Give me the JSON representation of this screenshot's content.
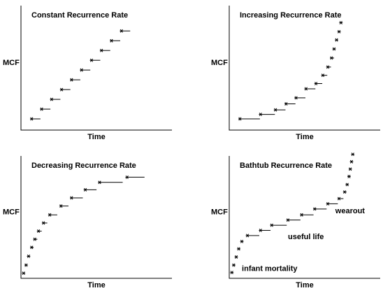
{
  "chart_data": [
    {
      "type": "scatter",
      "title": "Constant Recurrence Rate",
      "xlabel": "Time",
      "ylabel": "MCF",
      "xlim": [
        0,
        240
      ],
      "ylim": [
        0,
        160
      ],
      "grid": false,
      "marker": "asterisk",
      "step_style": "horizontal leftward arrow segments",
      "series": [
        {
          "points": [
            {
              "x": 15,
              "y": 13,
              "x_end": 29
            },
            {
              "x": 31,
              "y": 26,
              "x_end": 45
            },
            {
              "x": 47,
              "y": 39,
              "x_end": 61
            },
            {
              "x": 63,
              "y": 52,
              "x_end": 77
            },
            {
              "x": 79,
              "y": 65,
              "x_end": 93
            },
            {
              "x": 95,
              "y": 78,
              "x_end": 109
            },
            {
              "x": 111,
              "y": 91,
              "x_end": 125
            },
            {
              "x": 127,
              "y": 104,
              "x_end": 141
            },
            {
              "x": 143,
              "y": 117,
              "x_end": 157
            },
            {
              "x": 159,
              "y": 130,
              "x_end": 173
            }
          ]
        }
      ],
      "annotations": []
    },
    {
      "type": "scatter",
      "title": "Increasing Recurrence Rate",
      "xlabel": "Time",
      "ylabel": "MCF",
      "xlim": [
        0,
        240
      ],
      "ylim": [
        0,
        160
      ],
      "grid": false,
      "marker": "asterisk",
      "step_style": "horizontal leftward arrow segments",
      "series": [
        {
          "points": [
            {
              "x": 15,
              "y": 13,
              "x_end": 47
            },
            {
              "x": 48,
              "y": 19,
              "x_end": 71
            },
            {
              "x": 72,
              "y": 25,
              "x_end": 88
            },
            {
              "x": 89,
              "y": 33,
              "x_end": 104
            },
            {
              "x": 105,
              "y": 41,
              "x_end": 120
            },
            {
              "x": 121,
              "y": 53,
              "x_end": 136
            },
            {
              "x": 137,
              "y": 60,
              "x_end": 147
            },
            {
              "x": 148,
              "y": 71,
              "x_end": 155
            },
            {
              "x": 156,
              "y": 82,
              "x_end": 161
            },
            {
              "x": 162,
              "y": 94,
              "x_end": 166
            },
            {
              "x": 166,
              "y": 106
            },
            {
              "x": 170,
              "y": 118
            },
            {
              "x": 174,
              "y": 129
            },
            {
              "x": 177,
              "y": 141
            }
          ]
        }
      ],
      "annotations": []
    },
    {
      "type": "scatter",
      "title": "Decreasing Recurrence Rate",
      "xlabel": "Time",
      "ylabel": "MCF",
      "xlim": [
        0,
        240
      ],
      "ylim": [
        0,
        160
      ],
      "grid": false,
      "marker": "asterisk",
      "step_style": "horizontal leftward arrow segments",
      "series": [
        {
          "points": [
            {
              "x": 2,
              "y": 5
            },
            {
              "x": 6,
              "y": 16
            },
            {
              "x": 10,
              "y": 28
            },
            {
              "x": 15,
              "y": 40,
              "x_end": 18
            },
            {
              "x": 20,
              "y": 51,
              "x_end": 24
            },
            {
              "x": 26,
              "y": 62,
              "x_end": 31
            },
            {
              "x": 34,
              "y": 73,
              "x_end": 40
            },
            {
              "x": 44,
              "y": 84,
              "x_end": 56
            },
            {
              "x": 62,
              "y": 96,
              "x_end": 74
            },
            {
              "x": 79,
              "y": 107,
              "x_end": 97
            },
            {
              "x": 101,
              "y": 118,
              "x_end": 119
            },
            {
              "x": 124,
              "y": 128,
              "x_end": 161
            },
            {
              "x": 168,
              "y": 135,
              "x_end": 196
            }
          ]
        }
      ],
      "annotations": []
    },
    {
      "type": "scatter",
      "title": "Bathtub Recurrence Rate",
      "xlabel": "Time",
      "ylabel": "MCF",
      "xlim": [
        0,
        240
      ],
      "ylim": [
        0,
        160
      ],
      "grid": false,
      "marker": "asterisk",
      "step_style": "horizontal leftward arrow segments",
      "series": [
        {
          "points": [
            {
              "x": 2,
              "y": 6
            },
            {
              "x": 5,
              "y": 16
            },
            {
              "x": 9,
              "y": 27
            },
            {
              "x": 13,
              "y": 38
            },
            {
              "x": 18,
              "y": 48
            },
            {
              "x": 27,
              "y": 56,
              "x_end": 46
            },
            {
              "x": 48,
              "y": 63,
              "x_end": 64
            },
            {
              "x": 66,
              "y": 70,
              "x_end": 90
            },
            {
              "x": 92,
              "y": 77,
              "x_end": 112
            },
            {
              "x": 114,
              "y": 84,
              "x_end": 133
            },
            {
              "x": 135,
              "y": 92,
              "x_end": 154
            },
            {
              "x": 156,
              "y": 99,
              "x_end": 172
            },
            {
              "x": 174,
              "y": 106,
              "x_end": 181
            },
            {
              "x": 183,
              "y": 115,
              "x_end": 186
            },
            {
              "x": 187,
              "y": 125
            },
            {
              "x": 190,
              "y": 136
            },
            {
              "x": 192,
              "y": 146
            },
            {
              "x": 194,
              "y": 156
            },
            {
              "x": 196,
              "y": 166
            }
          ]
        }
      ],
      "annotations": [
        {
          "text": "infant mortality",
          "x": 18,
          "y": 8
        },
        {
          "text": "useful life",
          "x": 92,
          "y": 51
        },
        {
          "text": "wearout",
          "x": 168,
          "y": 86
        }
      ]
    }
  ]
}
